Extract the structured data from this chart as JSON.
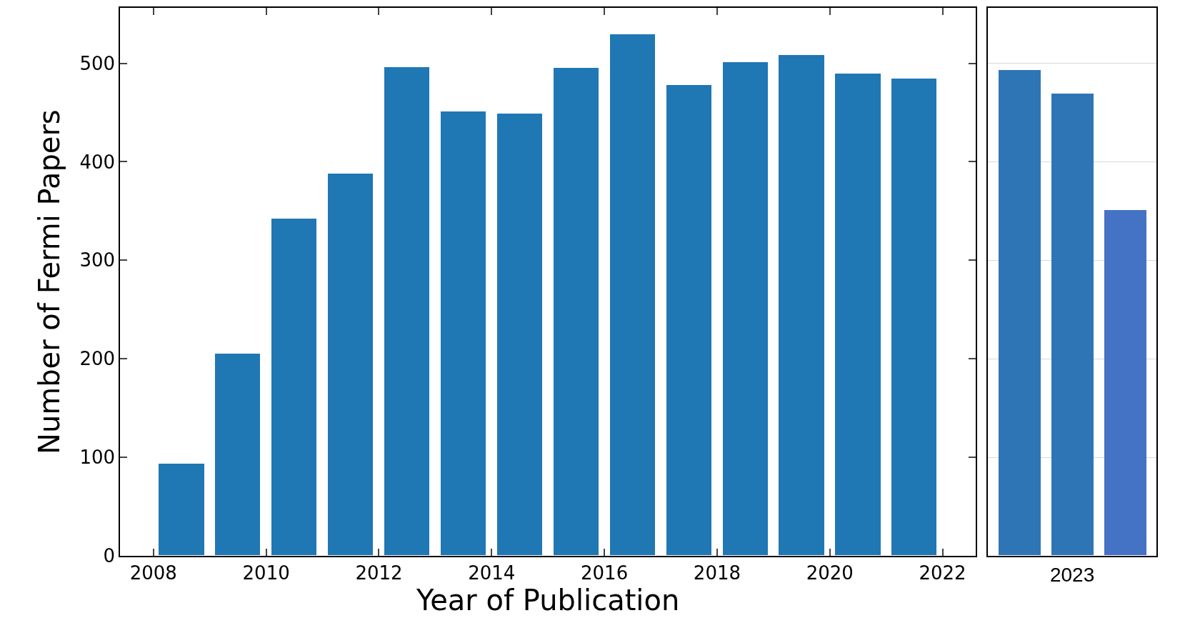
{
  "chart_data": [
    {
      "type": "bar",
      "xlabel": "Year of Publication",
      "ylabel": "Number of Fermi Papers",
      "x": [
        2008.5,
        2009.5,
        2010.5,
        2011.5,
        2012.5,
        2013.5,
        2014.5,
        2015.5,
        2016.5,
        2017.5,
        2018.5,
        2019.5,
        2020.5,
        2021.5
      ],
      "values": [
        93,
        205,
        342,
        388,
        496,
        451,
        449,
        495,
        529,
        478,
        501,
        508,
        489,
        484
      ],
      "color": "#1f77b4",
      "xlim": [
        2007.41,
        2022.59
      ],
      "xticks": [
        2008,
        2010,
        2012,
        2014,
        2016,
        2018,
        2020,
        2022
      ],
      "ylim": [
        0,
        556
      ],
      "yticks": [
        0,
        100,
        200,
        300,
        400,
        500
      ],
      "grid": false,
      "legend": false
    },
    {
      "type": "bar",
      "categories": [
        null,
        "2023",
        null
      ],
      "values": [
        493,
        469,
        351
      ],
      "colors": [
        "#2e75b6",
        "#2e75b6",
        "#4472c4"
      ],
      "ylim": [
        0,
        556
      ],
      "yticks": [
        100,
        200,
        300,
        400,
        500
      ],
      "grid": "y",
      "tick_labels": "x",
      "legend": false
    }
  ]
}
